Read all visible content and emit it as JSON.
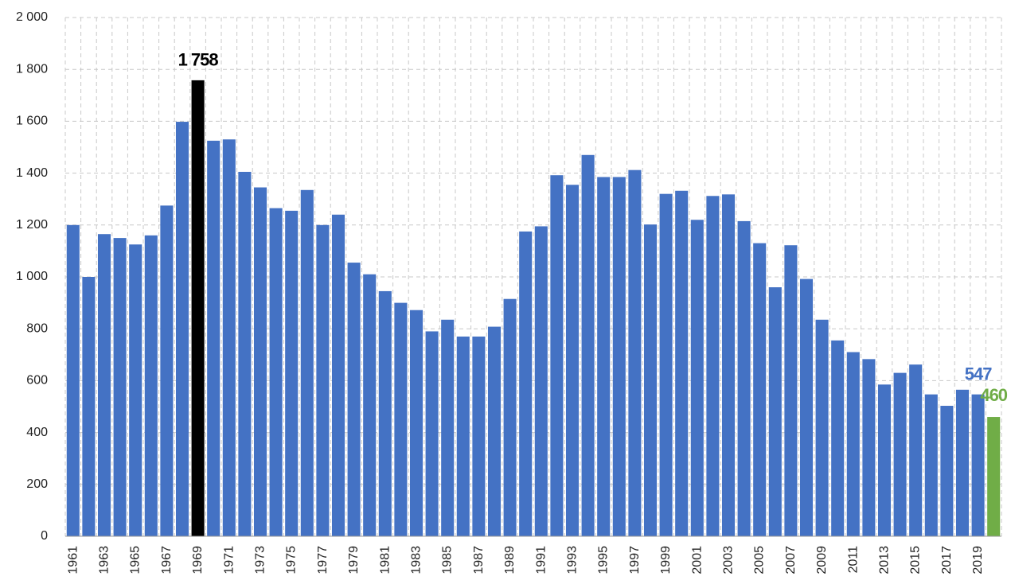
{
  "chart_data": {
    "type": "bar",
    "categories": [
      "1961",
      null,
      "1963",
      null,
      "1965",
      null,
      "1967",
      null,
      "1969",
      null,
      "1971",
      null,
      "1973",
      null,
      "1975",
      null,
      "1977",
      null,
      "1979",
      null,
      "1981",
      null,
      "1983",
      null,
      "1985",
      null,
      "1987",
      null,
      "1989",
      null,
      "1991",
      null,
      "1993",
      null,
      "1995",
      null,
      "1997",
      null,
      "1999",
      null,
      "2001",
      null,
      "2003",
      null,
      "2005",
      null,
      "2007",
      null,
      "2009",
      null,
      "2011",
      null,
      "2013",
      null,
      "2015",
      null,
      "2017",
      null,
      "2019",
      null
    ],
    "values": [
      1200,
      1000,
      1165,
      1150,
      1125,
      1160,
      1275,
      1598,
      1758,
      1525,
      1530,
      1405,
      1345,
      1265,
      1255,
      1335,
      1200,
      1240,
      1055,
      1010,
      945,
      900,
      872,
      790,
      835,
      770,
      770,
      808,
      915,
      1175,
      1195,
      1392,
      1355,
      1470,
      1385,
      1385,
      1412,
      1202,
      1320,
      1332,
      1220,
      1312,
      1318,
      1215,
      1130,
      960,
      1122,
      992,
      835,
      755,
      710,
      683,
      585,
      630,
      662,
      547,
      503,
      565,
      547,
      460
    ],
    "value_labels": [
      null,
      null,
      null,
      null,
      null,
      null,
      null,
      null,
      "1 758",
      null,
      null,
      null,
      null,
      null,
      null,
      null,
      null,
      null,
      null,
      null,
      null,
      null,
      null,
      null,
      null,
      null,
      null,
      null,
      null,
      null,
      null,
      null,
      null,
      null,
      null,
      null,
      null,
      null,
      null,
      null,
      null,
      null,
      null,
      null,
      null,
      null,
      null,
      null,
      null,
      null,
      null,
      null,
      null,
      null,
      null,
      null,
      null,
      null,
      "547",
      "460"
    ],
    "colors": [
      "#4472c4",
      "#4472c4",
      "#4472c4",
      "#4472c4",
      "#4472c4",
      "#4472c4",
      "#4472c4",
      "#4472c4",
      "#000000",
      "#4472c4",
      "#4472c4",
      "#4472c4",
      "#4472c4",
      "#4472c4",
      "#4472c4",
      "#4472c4",
      "#4472c4",
      "#4472c4",
      "#4472c4",
      "#4472c4",
      "#4472c4",
      "#4472c4",
      "#4472c4",
      "#4472c4",
      "#4472c4",
      "#4472c4",
      "#4472c4",
      "#4472c4",
      "#4472c4",
      "#4472c4",
      "#4472c4",
      "#4472c4",
      "#4472c4",
      "#4472c4",
      "#4472c4",
      "#4472c4",
      "#4472c4",
      "#4472c4",
      "#4472c4",
      "#4472c4",
      "#4472c4",
      "#4472c4",
      "#4472c4",
      "#4472c4",
      "#4472c4",
      "#4472c4",
      "#4472c4",
      "#4472c4",
      "#4472c4",
      "#4472c4",
      "#4472c4",
      "#4472c4",
      "#4472c4",
      "#4472c4",
      "#4472c4",
      "#4472c4",
      "#4472c4",
      "#4472c4",
      "#4472c4",
      "#70ad47"
    ],
    "ylim": [
      0,
      2000
    ],
    "yticks": [
      0,
      200,
      400,
      600,
      800,
      {
        "value": 1000,
        "label": "1 000"
      },
      {
        "value": 1200,
        "label": "1 200"
      },
      {
        "value": 1400,
        "label": "1 400"
      },
      {
        "value": 1600,
        "label": "1 600"
      },
      {
        "value": 1800,
        "label": "1 800"
      },
      {
        "value": 2000,
        "label": "2 000"
      }
    ],
    "grid": true
  }
}
